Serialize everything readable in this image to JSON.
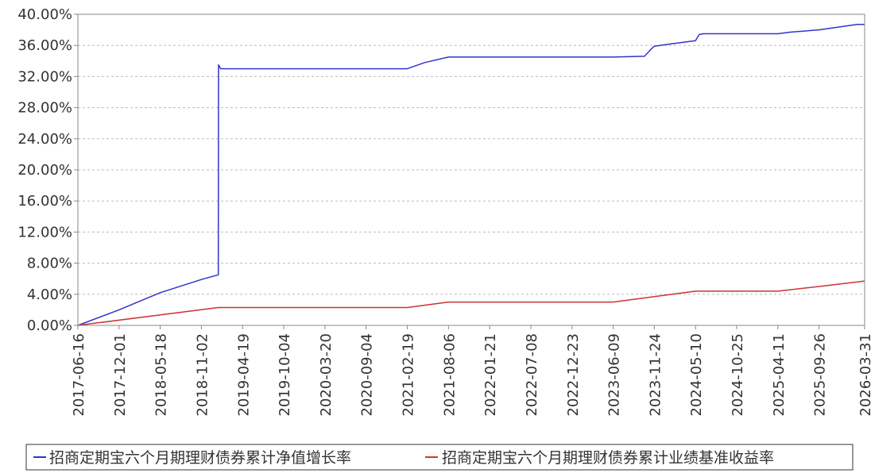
{
  "chart_data": {
    "type": "line",
    "title": "",
    "xlabel": "",
    "ylabel": "",
    "ylim": [
      0,
      40
    ],
    "y_ticks": [
      "0.00%",
      "4.00%",
      "8.00%",
      "12.00%",
      "16.00%",
      "20.00%",
      "24.00%",
      "28.00%",
      "32.00%",
      "36.00%",
      "40.00%"
    ],
    "x_ticks": [
      "2017-06-16",
      "2017-12-01",
      "2018-05-18",
      "2018-11-02",
      "2019-04-19",
      "2019-10-04",
      "2020-03-20",
      "2020-09-04",
      "2021-02-19",
      "2021-08-06",
      "2022-01-21",
      "2022-07-08",
      "2022-12-23",
      "2023-06-09",
      "2023-11-24",
      "2024-05-10",
      "2024-10-25",
      "2025-04-11",
      "2025-09-26",
      "2026-03-31"
    ],
    "grid": true,
    "legend_position": "bottom",
    "series": [
      {
        "name": "招商定期宝六个月期理财债券累计净值增长率",
        "color": "#3333cc",
        "x": [
          "2017-06-16",
          "2017-12-01",
          "2018-05-18",
          "2018-11-02",
          "2019-01-10",
          "2019-01-11",
          "2019-01-20",
          "2019-04-19",
          "2019-10-04",
          "2020-03-20",
          "2020-09-04",
          "2021-02-19",
          "2021-05-01",
          "2021-08-06",
          "2022-01-21",
          "2022-07-08",
          "2022-12-23",
          "2023-06-09",
          "2023-10-15",
          "2023-11-10",
          "2023-11-24",
          "2024-02-01",
          "2024-05-10",
          "2024-05-25",
          "2024-06-10",
          "2024-10-25",
          "2025-04-11",
          "2025-06-01",
          "2025-09-26",
          "2026-03-01",
          "2026-03-31"
        ],
        "values": [
          0.0,
          2.0,
          4.2,
          5.9,
          6.5,
          33.5,
          33.0,
          33.0,
          33.0,
          33.0,
          33.0,
          33.0,
          33.8,
          34.5,
          34.5,
          34.5,
          34.5,
          34.5,
          34.6,
          35.5,
          35.9,
          36.2,
          36.6,
          37.4,
          37.5,
          37.5,
          37.5,
          37.7,
          38.0,
          38.7,
          38.7
        ]
      },
      {
        "name": "招商定期宝六个月期理财债券累计业绩基准收益率",
        "color": "#cc3333",
        "x": [
          "2017-06-16",
          "2019-01-10",
          "2019-04-19",
          "2019-10-04",
          "2020-03-20",
          "2020-09-04",
          "2021-02-19",
          "2021-08-06",
          "2022-01-21",
          "2022-07-08",
          "2022-12-23",
          "2023-06-09",
          "2023-11-24",
          "2024-05-10",
          "2024-10-25",
          "2025-04-11",
          "2025-09-26",
          "2026-03-31"
        ],
        "values": [
          0.0,
          2.3,
          2.3,
          2.3,
          2.3,
          2.3,
          2.3,
          3.0,
          3.0,
          3.0,
          3.0,
          3.0,
          3.7,
          4.4,
          4.4,
          4.4,
          5.0,
          5.7
        ]
      }
    ]
  }
}
